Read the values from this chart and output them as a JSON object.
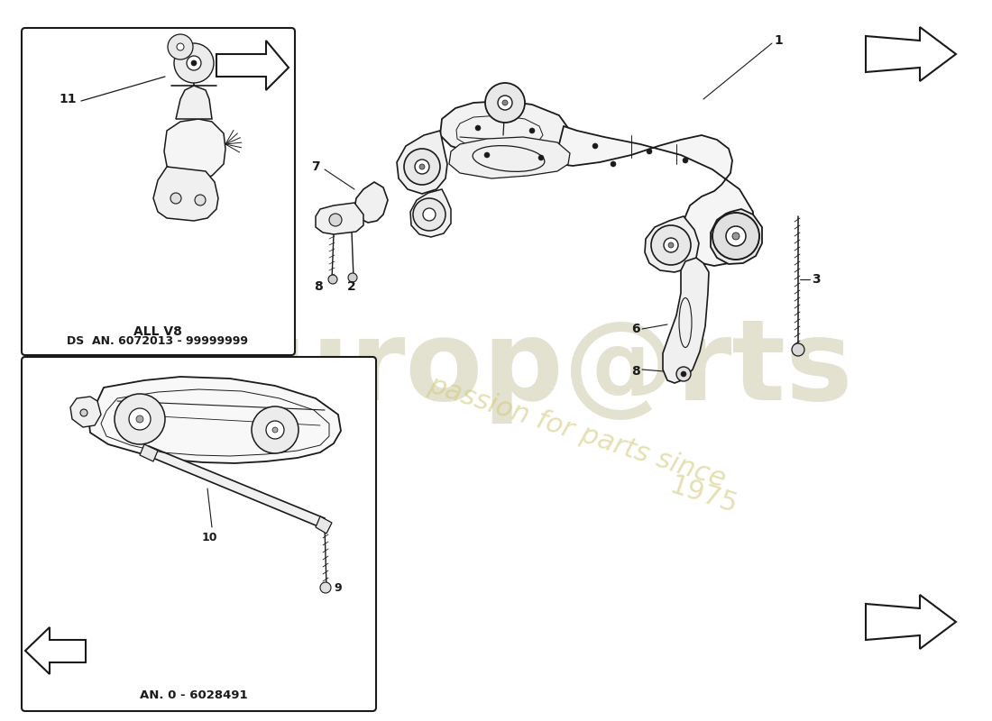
{
  "bg_color": "#ffffff",
  "lc": "#1a1a1a",
  "wm_color1": "#c8c4a0",
  "wm_color2": "#d4cc80",
  "box1_text1": "ALL V8",
  "box1_text2": "DS  AN. 6072013 - 99999999",
  "box2_text": "AN. 0 - 6028491",
  "figsize": [
    11.0,
    8.0
  ],
  "dpi": 100
}
